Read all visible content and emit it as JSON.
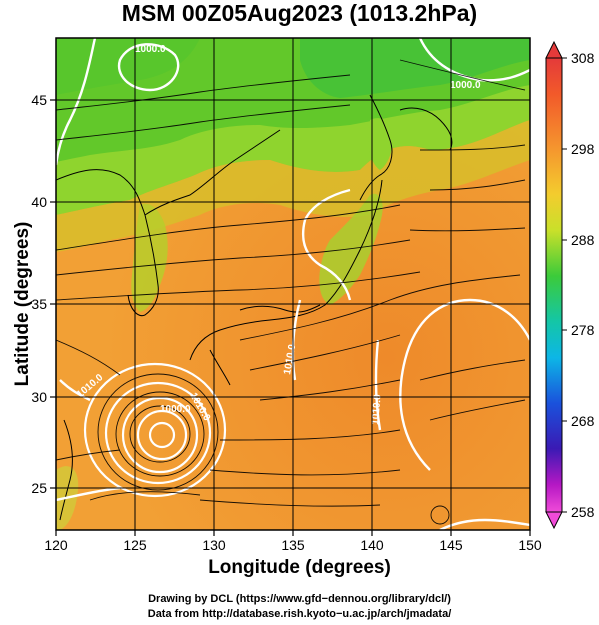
{
  "title": "MSM 00Z05Aug2023 (1013.2hPa)",
  "axes": {
    "x_title": "Longitude (degrees)",
    "y_title": "Latitude  (degrees)",
    "x_ticks": [
      "120",
      "125",
      "130",
      "135",
      "140",
      "145",
      "150"
    ],
    "y_ticks": [
      "25",
      "30",
      "35",
      "40",
      "45"
    ]
  },
  "colorbar": {
    "ticks": [
      "308",
      "298",
      "288",
      "278",
      "268",
      "258"
    ],
    "colors": [
      "#e23a3a",
      "#f46a2a",
      "#f7a23a",
      "#f0d230",
      "#cfe12a",
      "#74d52c",
      "#28c64a",
      "#16c79d",
      "#0fbde0",
      "#1874ea",
      "#2334c8",
      "#6a1ab8",
      "#c417c8",
      "#f04bd8"
    ]
  },
  "map": {
    "isobar_labels": [
      "1000.0",
      "1000.0",
      "1010.0",
      "1010.0",
      "1010.0",
      "1010.0",
      "1000.0"
    ]
  },
  "credits": {
    "line1": "Drawing by DCL (https://www.gfd−dennou.org/library/dcl/)",
    "line2": "Data from http://database.rish.kyoto−u.ac.jp/arch/jmadata/"
  }
}
